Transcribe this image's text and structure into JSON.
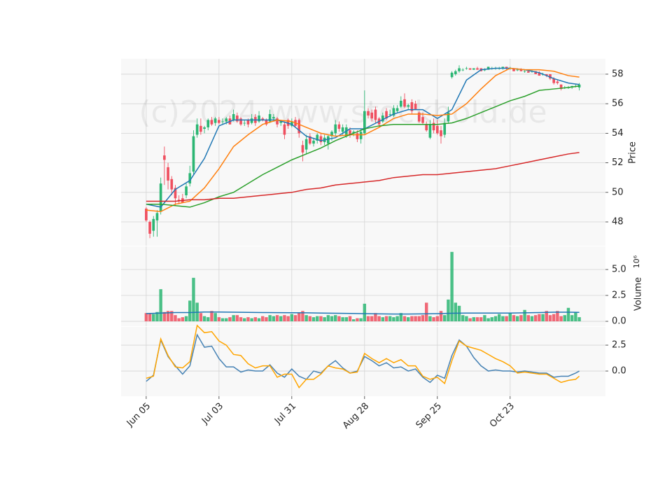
{
  "chart_data": {
    "type": "candlestick",
    "watermark": "(c)2024 www.stockbold.de",
    "grid": true,
    "xlim": [
      -6.9,
      126.2
    ],
    "xticks": [
      {
        "value": 0,
        "label": "Jun 05"
      },
      {
        "value": 20,
        "label": "Jul 03"
      },
      {
        "value": 40,
        "label": "Jul 31"
      },
      {
        "value": 60,
        "label": "Aug 28"
      },
      {
        "value": 80,
        "label": "Sep 25"
      },
      {
        "value": 100,
        "label": "Oct 23"
      }
    ],
    "price": {
      "ylabel": "Price",
      "ylim": [
        46.39,
        59.04
      ],
      "yticks": [
        48,
        50,
        52,
        54,
        56,
        58
      ],
      "up_color": "#2bb673",
      "down_color": "#ef4f5f",
      "open": [
        48.9,
        48.0,
        47.4,
        48.1,
        48.7,
        52.5,
        51.7,
        50.9,
        50.3,
        49.5,
        49.6,
        49.8,
        50.6,
        51.4,
        53.9,
        54.5,
        54.3,
        54.4,
        54.9,
        54.7,
        54.9,
        54.8,
        54.8,
        55.0,
        54.9,
        55.2,
        55.0,
        54.7,
        54.9,
        54.7,
        55.1,
        54.8,
        55.0,
        54.9,
        54.8,
        55.0,
        55.0,
        54.7,
        54.6,
        54.9,
        54.5,
        54.9,
        54.9,
        53.2,
        52.9,
        53.8,
        53.3,
        53.5,
        53.8,
        53.4,
        53.3,
        53.8,
        54.0,
        54.6,
        54.1,
        53.8,
        54.2,
        54.0,
        54.0,
        53.6,
        54.0,
        55.5,
        55.4,
        55.6,
        55.0,
        54.8,
        55.5,
        55.3,
        55.2,
        55.5,
        55.8,
        56.3,
        55.8,
        56.1,
        56.0,
        55.4,
        55.1,
        54.6,
        53.7,
        54.7,
        54.5,
        54.2,
        53.9,
        54.8,
        57.8,
        58.0,
        58.2,
        58.3,
        58.4,
        58.4,
        58.3,
        58.4,
        58.4,
        58.3,
        58.3,
        58.4,
        58.4,
        58.4,
        58.4,
        58.5,
        58.4,
        58.4,
        58.3,
        58.3,
        58.2,
        58.2,
        58.2,
        58.2,
        58.1,
        58.0,
        58.0,
        58.0,
        57.7,
        57.5,
        57.3,
        57.1,
        57.1,
        57.1,
        57.2,
        57.1
      ],
      "high": [
        49.0,
        48.1,
        48.4,
        48.8,
        51.0,
        53.1,
        52.0,
        51.1,
        50.5,
        49.8,
        49.9,
        50.6,
        51.8,
        54.2,
        55.0,
        55.0,
        54.5,
        55.0,
        55.1,
        55.1,
        55.1,
        55.0,
        55.1,
        55.2,
        55.6,
        55.4,
        55.1,
        54.9,
        55.0,
        55.3,
        55.3,
        55.5,
        55.1,
        55.0,
        55.6,
        55.3,
        55.1,
        54.9,
        54.8,
        55.0,
        55.0,
        55.1,
        55.0,
        53.5,
        53.9,
        54.0,
        53.7,
        54.0,
        54.0,
        53.9,
        53.9,
        54.2,
        54.9,
        54.8,
        54.6,
        54.6,
        54.4,
        54.2,
        54.2,
        54.3,
        56.9,
        55.7,
        55.6,
        55.8,
        55.1,
        55.4,
        55.7,
        55.6,
        55.9,
        55.9,
        56.5,
        56.7,
        56.0,
        56.3,
        56.2,
        55.5,
        55.4,
        54.8,
        54.9,
        55.0,
        54.9,
        54.5,
        55.0,
        55.8,
        58.2,
        58.3,
        58.6,
        58.4,
        58.5,
        58.4,
        58.4,
        58.5,
        58.4,
        58.4,
        58.5,
        58.5,
        58.5,
        58.5,
        58.5,
        58.5,
        58.5,
        58.4,
        58.4,
        58.4,
        58.3,
        58.3,
        58.3,
        58.2,
        58.2,
        58.1,
        58.0,
        58.0,
        57.8,
        57.6,
        57.3,
        57.2,
        57.2,
        57.2,
        57.3,
        57.4
      ],
      "low": [
        48.0,
        46.9,
        47.0,
        47.0,
        48.5,
        50.5,
        50.2,
        49.8,
        49.1,
        49.2,
        49.3,
        49.6,
        50.4,
        51.2,
        53.7,
        53.9,
        54.0,
        54.2,
        54.5,
        54.5,
        54.6,
        54.6,
        54.6,
        54.6,
        54.8,
        54.7,
        54.5,
        54.5,
        54.4,
        54.6,
        54.5,
        54.7,
        54.8,
        54.5,
        54.7,
        54.8,
        54.4,
        54.5,
        53.6,
        54.3,
        54.4,
        54.4,
        53.7,
        52.1,
        52.6,
        53.2,
        53.1,
        53.3,
        53.2,
        53.2,
        52.9,
        53.5,
        53.8,
        54.1,
        53.9,
        53.7,
        53.7,
        53.8,
        53.4,
        53.3,
        53.9,
        55.0,
        54.8,
        54.7,
        54.4,
        54.7,
        54.9,
        55.1,
        55.1,
        55.4,
        55.7,
        55.7,
        55.6,
        55.3,
        55.6,
        54.7,
        54.6,
        54.1,
        53.6,
        54.0,
        53.9,
        53.3,
        53.7,
        54.7,
        57.7,
        57.9,
        58.1,
        58.2,
        58.3,
        58.3,
        58.3,
        58.3,
        58.2,
        58.2,
        58.3,
        58.3,
        58.3,
        58.3,
        58.3,
        58.3,
        58.3,
        58.2,
        58.2,
        58.2,
        58.1,
        58.1,
        58.1,
        58.0,
        57.9,
        57.9,
        57.8,
        57.6,
        57.3,
        57.3,
        56.9,
        57.0,
        57.0,
        57.0,
        57.1,
        56.9
      ],
      "close": [
        48.1,
        47.2,
        48.2,
        48.6,
        50.6,
        52.2,
        50.8,
        50.2,
        49.6,
        49.4,
        49.3,
        50.4,
        51.3,
        53.8,
        54.6,
        54.1,
        54.4,
        54.9,
        54.6,
        55.0,
        54.7,
        54.8,
        55.0,
        54.6,
        55.3,
        54.8,
        54.6,
        54.7,
        54.6,
        55.0,
        54.7,
        55.2,
        54.9,
        54.6,
        55.3,
        55.1,
        54.6,
        54.8,
        53.9,
        54.5,
        54.8,
        54.5,
        54.0,
        52.7,
        53.6,
        53.3,
        53.5,
        53.9,
        53.4,
        53.7,
        53.8,
        54.1,
        54.6,
        54.3,
        54.4,
        54.4,
        53.9,
        54.1,
        53.6,
        54.1,
        55.5,
        55.2,
        55.0,
        54.9,
        54.6,
        55.2,
        55.0,
        55.3,
        55.7,
        55.7,
        56.2,
        55.8,
        55.9,
        55.5,
        55.6,
        54.8,
        54.7,
        54.2,
        54.6,
        54.2,
        54.0,
        53.8,
        54.7,
        55.4,
        58.1,
        58.2,
        58.4,
        58.3,
        58.4,
        58.3,
        58.4,
        58.3,
        58.2,
        58.3,
        58.5,
        58.4,
        58.4,
        58.4,
        58.5,
        58.4,
        58.4,
        58.2,
        58.3,
        58.2,
        58.2,
        58.1,
        58.2,
        58.0,
        57.9,
        58.0,
        57.9,
        57.7,
        57.4,
        57.4,
        57.0,
        57.1,
        57.1,
        57.2,
        57.2,
        57.3
      ]
    },
    "ma": {
      "x": [
        0,
        4,
        8,
        12,
        16,
        20,
        24,
        28,
        32,
        36,
        40,
        44,
        48,
        52,
        56,
        60,
        64,
        68,
        72,
        76,
        80,
        84,
        88,
        92,
        96,
        100,
        104,
        108,
        112,
        116,
        119
      ],
      "series": [
        {
          "color": "#1f77b4",
          "values": [
            49.2,
            49.0,
            50.2,
            50.8,
            52.3,
            54.5,
            54.9,
            54.9,
            54.9,
            54.9,
            54.6,
            53.8,
            53.5,
            53.7,
            54.3,
            54.3,
            54.8,
            55.3,
            55.6,
            55.6,
            55.0,
            55.6,
            57.6,
            58.3,
            58.4,
            58.4,
            58.3,
            58.1,
            57.7,
            57.4,
            57.3
          ]
        },
        {
          "color": "#ff7f0e",
          "values": [
            48.8,
            48.7,
            49.2,
            49.4,
            50.3,
            51.6,
            53.1,
            53.9,
            54.6,
            54.9,
            54.8,
            54.4,
            54.0,
            53.8,
            53.9,
            53.9,
            54.4,
            55.0,
            55.3,
            55.3,
            55.2,
            55.3,
            56.0,
            57.0,
            57.9,
            58.4,
            58.3,
            58.3,
            58.2,
            57.9,
            57.8
          ]
        },
        {
          "color": "#2ca02c",
          "values": [
            49.2,
            49.2,
            49.1,
            49.0,
            49.3,
            49.7,
            50.0,
            50.6,
            51.2,
            51.7,
            52.2,
            52.6,
            53.0,
            53.5,
            53.9,
            54.3,
            54.5,
            54.6,
            54.6,
            54.6,
            54.6,
            54.7,
            55.0,
            55.4,
            55.8,
            56.2,
            56.5,
            56.9,
            57.0,
            57.1,
            57.2
          ]
        },
        {
          "color": "#d62728",
          "values": [
            49.4,
            49.4,
            49.4,
            49.5,
            49.5,
            49.6,
            49.6,
            49.7,
            49.8,
            49.9,
            50.0,
            50.2,
            50.3,
            50.5,
            50.6,
            50.7,
            50.8,
            51.0,
            51.1,
            51.2,
            51.2,
            51.3,
            51.4,
            51.5,
            51.6,
            51.8,
            52.0,
            52.2,
            52.4,
            52.6,
            52.7
          ]
        }
      ]
    },
    "volume": {
      "ylabel": "Volume",
      "offset_label": "10⁶",
      "ylim": [
        -0.47,
        7.23
      ],
      "yticks": [
        {
          "value": 0,
          "label": "0.0"
        },
        2.5,
        {
          "value": 5,
          "label": "5.0"
        }
      ],
      "values": [
        0.8,
        0.8,
        0.7,
        0.9,
        3.1,
        0.9,
        1.0,
        1.0,
        0.6,
        0.3,
        0.4,
        0.5,
        2.0,
        4.2,
        1.8,
        0.8,
        0.5,
        0.4,
        1.0,
        0.8,
        0.4,
        0.3,
        0.3,
        0.4,
        0.6,
        0.6,
        0.4,
        0.3,
        0.4,
        0.3,
        0.4,
        0.3,
        0.5,
        0.4,
        0.6,
        0.5,
        0.6,
        0.5,
        0.6,
        0.5,
        0.7,
        0.6,
        0.8,
        1.0,
        0.6,
        0.5,
        0.4,
        0.5,
        0.5,
        0.4,
        0.6,
        0.5,
        0.6,
        0.5,
        0.4,
        0.4,
        0.5,
        0.2,
        0.3,
        0.3,
        1.7,
        0.5,
        0.5,
        0.8,
        0.5,
        0.4,
        0.5,
        0.5,
        0.4,
        0.5,
        0.8,
        0.5,
        0.4,
        0.5,
        0.5,
        0.5,
        0.6,
        1.8,
        0.5,
        0.4,
        0.5,
        1.0,
        0.6,
        2.1,
        6.7,
        1.8,
        1.5,
        0.6,
        0.5,
        0.3,
        0.4,
        0.4,
        0.4,
        0.6,
        0.3,
        0.4,
        0.5,
        0.7,
        0.5,
        0.5,
        0.8,
        0.6,
        0.5,
        0.6,
        1.1,
        0.6,
        0.5,
        0.6,
        0.7,
        0.7,
        1.0,
        0.6,
        0.7,
        1.0,
        0.5,
        0.6,
        1.3,
        0.6,
        0.9,
        0.4
      ],
      "ma": {
        "color": "#1f77b4",
        "values": [
          0.75,
          0.8,
          0.85,
          0.85,
          0.9,
          0.9,
          0.88,
          0.86,
          0.85,
          0.84,
          0.83,
          0.82,
          0.8,
          0.78,
          0.76,
          0.74,
          0.72,
          0.7,
          0.7,
          0.72,
          0.74,
          0.78,
          0.8,
          0.8,
          0.8,
          0.8,
          0.82,
          0.85,
          0.88,
          0.88,
          0.86
        ]
      }
    },
    "oscillator": {
      "ylim": [
        -2.43,
        4.26
      ],
      "yticks": [
        {
          "value": 0,
          "label": "0.0"
        },
        2.5
      ],
      "x": [
        0,
        2,
        4,
        6,
        8,
        10,
        12,
        14,
        16,
        18,
        20,
        22,
        24,
        26,
        28,
        30,
        32,
        34,
        36,
        38,
        40,
        42,
        44,
        46,
        48,
        50,
        52,
        54,
        56,
        58,
        60,
        62,
        64,
        66,
        68,
        70,
        72,
        74,
        76,
        78,
        80,
        82,
        84,
        86,
        88,
        90,
        92,
        94,
        96,
        98,
        100,
        102,
        104,
        106,
        108,
        110,
        112,
        114,
        116,
        118,
        119
      ],
      "series": [
        {
          "color": "#4682b4",
          "values": [
            -1.0,
            -0.4,
            3.0,
            1.4,
            0.5,
            -0.3,
            0.5,
            3.5,
            2.3,
            2.4,
            1.2,
            0.4,
            0.4,
            -0.1,
            0.1,
            0.0,
            0.0,
            0.6,
            -0.2,
            -0.6,
            0.2,
            -0.5,
            -0.8,
            0.0,
            -0.2,
            0.5,
            1.0,
            0.3,
            -0.2,
            0.0,
            1.4,
            1.0,
            0.5,
            0.8,
            0.3,
            0.4,
            0.0,
            0.2,
            -0.6,
            -1.1,
            -0.4,
            -0.7,
            1.5,
            3.0,
            2.4,
            1.3,
            0.5,
            0.0,
            0.1,
            0.0,
            0.0,
            -0.1,
            0.0,
            -0.1,
            -0.2,
            -0.2,
            -0.6,
            -0.5,
            -0.5,
            -0.2,
            0.0
          ]
        },
        {
          "color": "#ffa500",
          "values": [
            -0.7,
            -0.5,
            3.1,
            1.5,
            0.4,
            0.3,
            0.9,
            4.4,
            3.7,
            3.8,
            2.9,
            2.5,
            1.6,
            1.5,
            0.7,
            0.3,
            0.5,
            0.5,
            -0.6,
            -0.3,
            -0.3,
            -1.6,
            -0.8,
            -0.8,
            -0.3,
            0.5,
            0.3,
            0.2,
            -0.2,
            -0.1,
            1.7,
            1.2,
            0.8,
            1.2,
            0.8,
            1.1,
            0.5,
            0.5,
            -0.5,
            -0.8,
            -0.6,
            -1.2,
            1.0,
            2.9,
            2.4,
            2.2,
            2.0,
            1.6,
            1.2,
            0.9,
            0.5,
            -0.2,
            -0.1,
            -0.2,
            -0.3,
            -0.3,
            -0.7,
            -1.1,
            -0.9,
            -0.8,
            -0.5
          ]
        }
      ]
    }
  }
}
